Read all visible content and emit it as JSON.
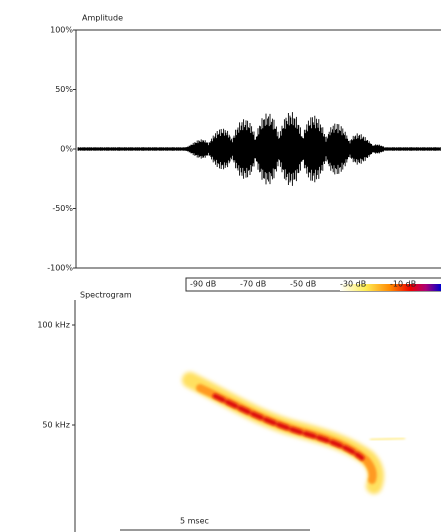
{
  "amplitude_panel": {
    "title": "Amplitude",
    "ticks": [
      "100%",
      "50%",
      "0%",
      "-50%",
      "-100%"
    ]
  },
  "spectrogram_panel": {
    "title": "Spectrogram",
    "colorbar_labels": [
      "-90 dB",
      "-70 dB",
      "-50 dB",
      "-30 dB",
      "-10 dB"
    ],
    "frequency_ticks": [
      "100 kHz",
      "50 kHz"
    ],
    "time_scale": "5 msec"
  }
}
